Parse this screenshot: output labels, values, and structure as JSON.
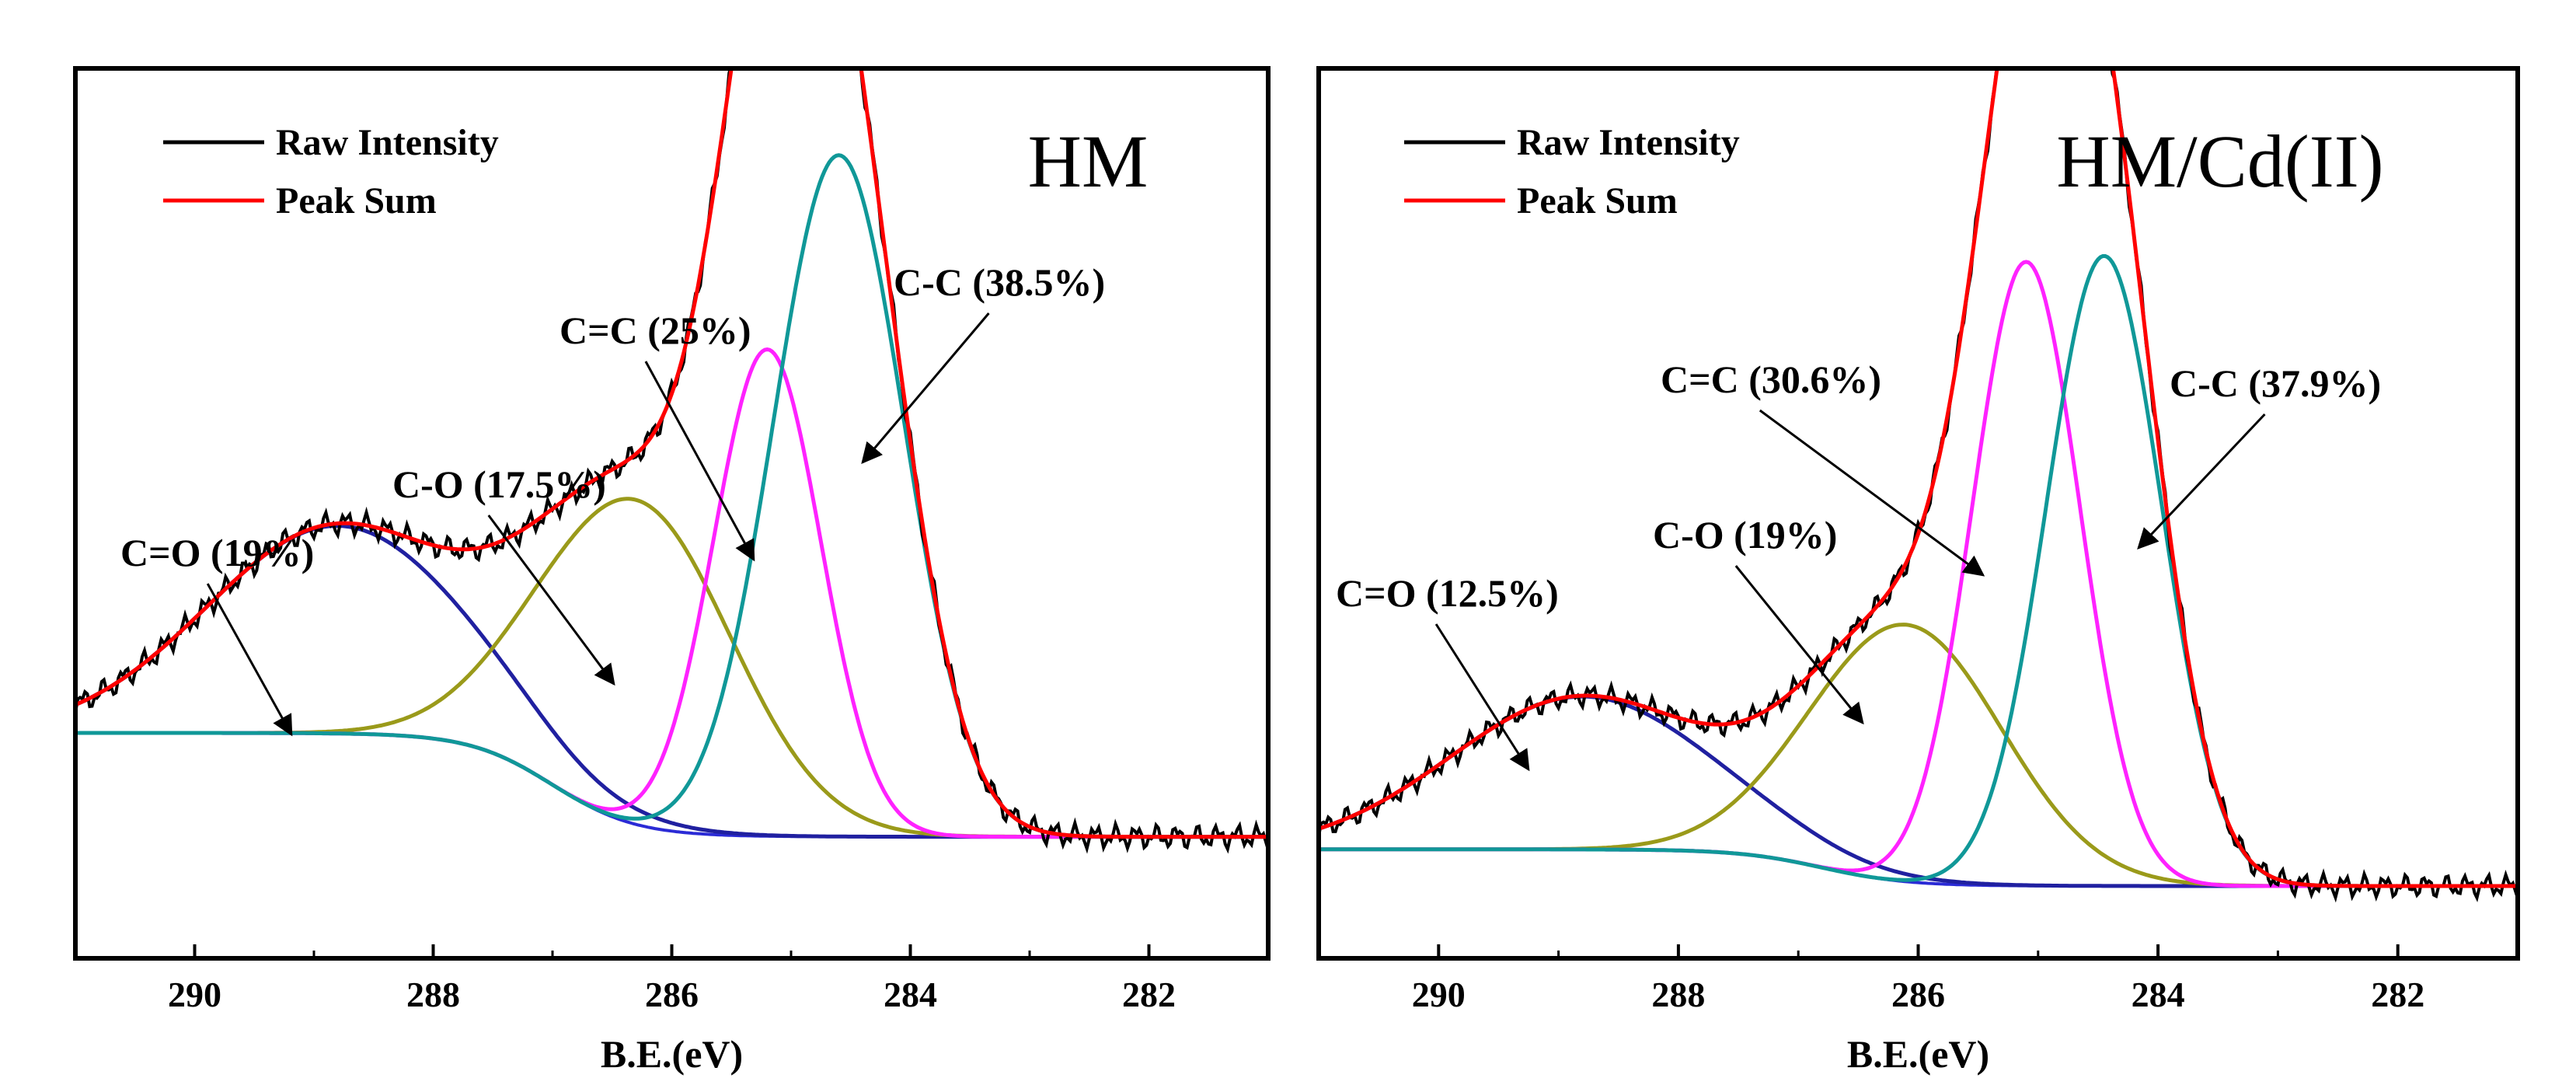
{
  "chart_data": [
    {
      "type": "line",
      "title": "HM",
      "xlabel": "B.E.(eV)",
      "ylabel": "",
      "xlim": [
        291,
        281
      ],
      "x_reversed": true,
      "y_ticks_shown": false,
      "xticks": [
        "290",
        "288",
        "286",
        "284",
        "282"
      ],
      "legend": {
        "position": "top-left",
        "entries": [
          "Raw Intensity",
          "Peak Sum"
        ]
      },
      "colors": {
        "raw": "#000000",
        "sum": "#ff0000",
        "background": "#2b2bd6",
        "C=O": "#2020a0",
        "C-O": "#9a9a1a",
        "C=C": "#ff22ff",
        "C-C": "#109898"
      },
      "baseline": {
        "left": 0.2,
        "right": 0.04,
        "step_center": 287.0,
        "step_width": 1.4
      },
      "components": [
        {
          "name": "C=O",
          "label": "C=O (19%)",
          "center": 288.8,
          "height": 0.32,
          "sigma": 1.1
        },
        {
          "name": "C-O",
          "label": "C-O (17.5%)",
          "center": 286.3,
          "height": 0.5,
          "sigma": 0.8
        },
        {
          "name": "C=C",
          "label": "C=C (25%)",
          "center": 285.2,
          "height": 0.75,
          "sigma": 0.45
        },
        {
          "name": "C-C",
          "label": "C-C (38.5%)",
          "center": 284.6,
          "height": 1.05,
          "sigma": 0.55
        }
      ],
      "annotations": [
        {
          "text": "C=O (19%)",
          "points_to": "C=O"
        },
        {
          "text": "C-O (17.5%)",
          "points_to": "C-O"
        },
        {
          "text": "C=C (25%)",
          "points_to": "C=C"
        },
        {
          "text": "C-C (38.5%)",
          "points_to": "C-C"
        }
      ]
    },
    {
      "type": "line",
      "title": "HM/Cd(II)",
      "xlabel": "B.E.(eV)",
      "ylabel": "",
      "xlim": [
        291,
        281
      ],
      "x_reversed": true,
      "y_ticks_shown": false,
      "xticks": [
        "290",
        "288",
        "286",
        "284",
        "282"
      ],
      "legend": {
        "position": "top-left",
        "entries": [
          "Raw Intensity",
          "Peak Sum"
        ]
      },
      "colors": {
        "raw": "#000000",
        "sum": "#ff0000",
        "background": "#2b2bd6",
        "C=O": "#2020a0",
        "C-O": "#9a9a1a",
        "C=C": "#ff22ff",
        "C-C": "#109898"
      },
      "baseline": {
        "left": 0.06,
        "right": 0.0,
        "step_center": 286.8,
        "step_width": 1.4
      },
      "components": [
        {
          "name": "C=O",
          "label": "C=O (12.5%)",
          "center": 288.8,
          "height": 0.25,
          "sigma": 1.1
        },
        {
          "name": "C-O",
          "label": "C-O (19%)",
          "center": 286.1,
          "height": 0.42,
          "sigma": 0.8
        },
        {
          "name": "C=C",
          "label": "C=C (30.6%)",
          "center": 285.1,
          "height": 1.02,
          "sigma": 0.45
        },
        {
          "name": "C-C",
          "label": "C-C (37.9%)",
          "center": 284.45,
          "height": 1.03,
          "sigma": 0.48
        }
      ],
      "annotations": [
        {
          "text": "C=O (12.5%)",
          "points_to": "C=O"
        },
        {
          "text": "C-O (19%)",
          "points_to": "C-O"
        },
        {
          "text": "C=C (30.6%)",
          "points_to": "C=C"
        },
        {
          "text": "C-C (37.9%)",
          "points_to": "C-C"
        }
      ]
    }
  ]
}
